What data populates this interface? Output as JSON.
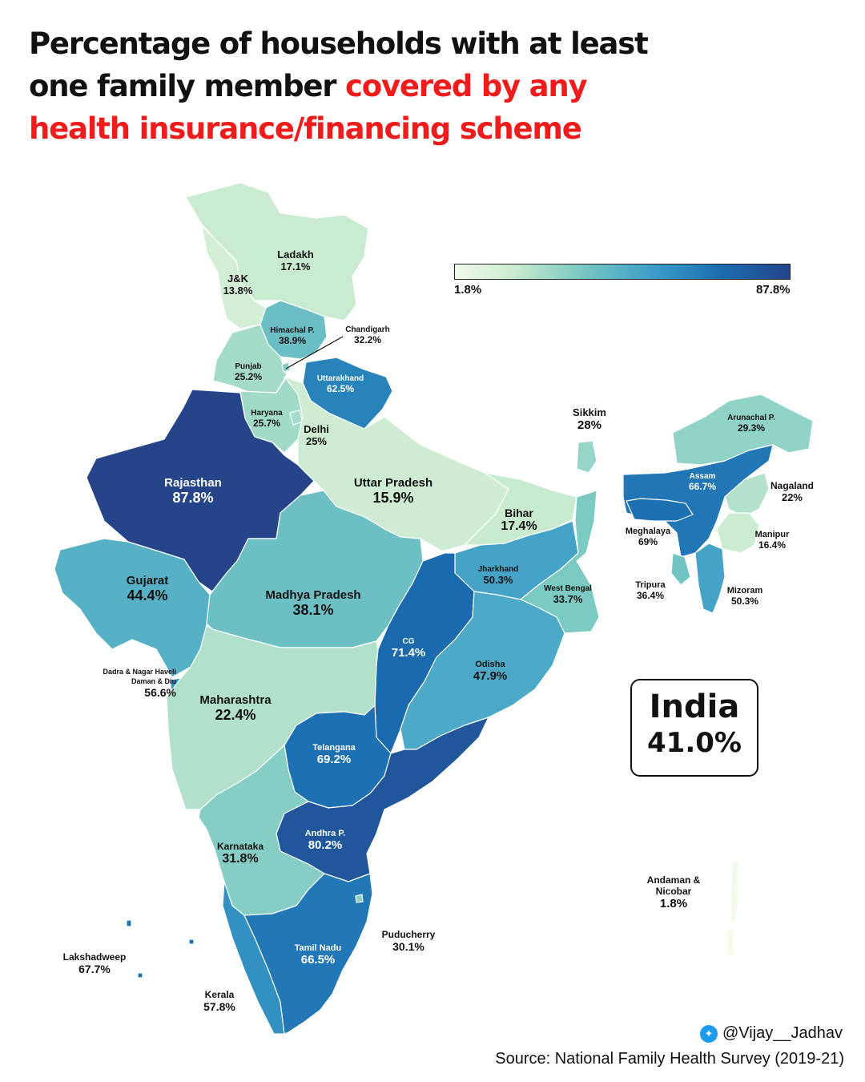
{
  "title": {
    "line1": "Percentage of households with at least",
    "line2_plain": "one  family member ",
    "line2_highlight": "covered by any",
    "line3_highlight": "health insurance/financing scheme"
  },
  "colors": {
    "highlight": "#f01c1c",
    "scale_min": "#f2faea",
    "scale_max": "#25448a"
  },
  "legend": {
    "min_label": "1.8%",
    "max_label": "87.8%",
    "min_value": 1.8,
    "max_value": 87.8
  },
  "regions": [
    {
      "id": "ladakh",
      "name": "Ladakh",
      "value_label": "17.1%",
      "value": 17.1
    },
    {
      "id": "jk",
      "name": "J&K",
      "value_label": "13.8%",
      "value": 13.8
    },
    {
      "id": "himachal",
      "name": "Himachal P.",
      "value_label": "38.9%",
      "value": 38.9
    },
    {
      "id": "chandigarh",
      "name": "Chandigarh",
      "value_label": "32.2%",
      "value": 32.2
    },
    {
      "id": "punjab",
      "name": "Punjab",
      "value_label": "25.2%",
      "value": 25.2
    },
    {
      "id": "uttarakhand",
      "name": "Uttarakhand",
      "value_label": "62.5%",
      "value": 62.5
    },
    {
      "id": "haryana",
      "name": "Haryana",
      "value_label": "25.7%",
      "value": 25.7
    },
    {
      "id": "delhi",
      "name": "Delhi",
      "value_label": "25%",
      "value": 25
    },
    {
      "id": "rajasthan",
      "name": "Rajasthan",
      "value_label": "87.8%",
      "value": 87.8
    },
    {
      "id": "uttar_pradesh",
      "name": "Uttar Pradesh",
      "value_label": "15.9%",
      "value": 15.9
    },
    {
      "id": "bihar",
      "name": "Bihar",
      "value_label": "17.4%",
      "value": 17.4
    },
    {
      "id": "sikkim",
      "name": "Sikkim",
      "value_label": "28%",
      "value": 28
    },
    {
      "id": "arunachal",
      "name": "Arunachal P.",
      "value_label": "29.3%",
      "value": 29.3
    },
    {
      "id": "assam",
      "name": "Assam",
      "value_label": "66.7%",
      "value": 66.7
    },
    {
      "id": "nagaland",
      "name": "Nagaland",
      "value_label": "22%",
      "value": 22
    },
    {
      "id": "meghalaya",
      "name": "Meghalaya",
      "value_label": "69%",
      "value": 69
    },
    {
      "id": "manipur",
      "name": "Manipur",
      "value_label": "16.4%",
      "value": 16.4
    },
    {
      "id": "tripura",
      "name": "Tripura",
      "value_label": "36.4%",
      "value": 36.4
    },
    {
      "id": "mizoram",
      "name": "Mizoram",
      "value_label": "50.3%",
      "value": 50.3
    },
    {
      "id": "gujarat",
      "name": "Gujarat",
      "value_label": "44.4%",
      "value": 44.4
    },
    {
      "id": "madhya_pradesh",
      "name": "Madhya Pradesh",
      "value_label": "38.1%",
      "value": 38.1
    },
    {
      "id": "jharkhand",
      "name": "Jharkhand",
      "value_label": "50.3%",
      "value": 50.3
    },
    {
      "id": "west_bengal",
      "name": "West Bengal",
      "value_label": "33.7%",
      "value": 33.7
    },
    {
      "id": "cg",
      "name": "CG",
      "value_label": "71.4%",
      "value": 71.4
    },
    {
      "id": "odisha",
      "name": "Odisha",
      "value_label": "47.9%",
      "value": 47.9
    },
    {
      "id": "dnh",
      "name": "Dadra & Nagar Haveli Daman & Diu",
      "value_label": "56.6%",
      "value": 56.6
    },
    {
      "id": "maharashtra",
      "name": "Maharashtra",
      "value_label": "22.4%",
      "value": 22.4
    },
    {
      "id": "telangana",
      "name": "Telangana",
      "value_label": "69.2%",
      "value": 69.2
    },
    {
      "id": "andhra",
      "name": "Andhra P.",
      "value_label": "80.2%",
      "value": 80.2
    },
    {
      "id": "karnataka",
      "name": "Karnataka",
      "value_label": "31.8%",
      "value": 31.8
    },
    {
      "id": "andaman",
      "name": "Andaman & Nicobar",
      "value_label": "1.8%",
      "value": 1.8
    },
    {
      "id": "puducherry",
      "name": "Puducherry",
      "value_label": "30.1%",
      "value": 30.1
    },
    {
      "id": "tamil_nadu",
      "name": "Tamil Nadu",
      "value_label": "66.5%",
      "value": 66.5
    },
    {
      "id": "lakshadweep",
      "name": "Lakshadweep",
      "value_label": "67.7%",
      "value": 67.7
    },
    {
      "id": "kerala",
      "name": "Kerala",
      "value_label": "57.8%",
      "value": 57.8
    }
  ],
  "india_total": {
    "name": "India",
    "value_label": "41.0%",
    "value": 41.0
  },
  "credit": {
    "handle": "@Vijay__Jadhav",
    "icon": "twitter-bird-icon"
  },
  "source": "Source: National Family Health Survey (2019-21)"
}
